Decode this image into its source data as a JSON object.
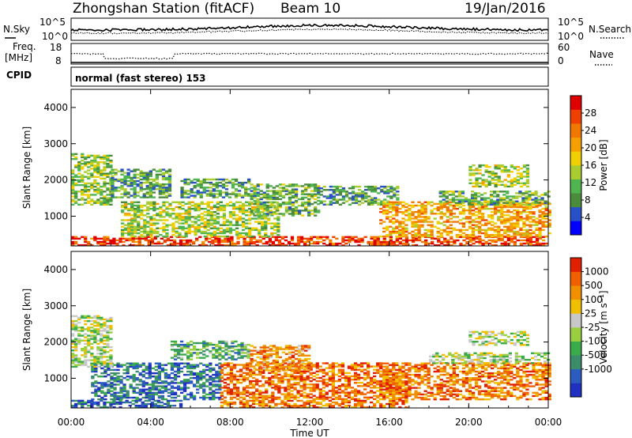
{
  "header": {
    "station": "Zhongshan Station (fitACF)",
    "beam": "Beam 10",
    "date": "19/Jan/2016"
  },
  "top_panels": {
    "nsky_label": "N.Sky",
    "nsearch_label": "N.Search",
    "nsky_ticks": [
      "10^5",
      "10^0"
    ],
    "nsearch_ticks": [
      "10^5",
      "10^0"
    ],
    "freq_label_line1": "Freq.",
    "freq_label_line2": "[MHz]",
    "freq_ticks": [
      "18",
      "8"
    ],
    "nave_label": "Nave",
    "nave_ticks": [
      "60",
      "0"
    ],
    "cpid_label": "CPID",
    "cpid_text": "normal (fast stereo) 153"
  },
  "chart_data": [
    {
      "type": "heatmap",
      "title": "",
      "xlabel": "Time UT",
      "ylabel": "Slant Range [km]",
      "xlim": [
        0,
        24
      ],
      "ylim": [
        180,
        4500
      ],
      "x_tick_labels": [
        "00:00",
        "04:00",
        "08:00",
        "12:00",
        "16:00",
        "20:00",
        "00:00"
      ],
      "y_ticks": [
        1000,
        2000,
        3000,
        4000
      ],
      "y_tick_labels": [
        "1000",
        "2000",
        "3000",
        "4000"
      ],
      "colorbar": {
        "label": "Power [dB]",
        "tick_labels": [
          "4",
          "8",
          "12",
          "16",
          "20",
          "24",
          "28"
        ],
        "ticks": [
          4,
          8,
          12,
          16,
          20,
          24,
          28
        ],
        "range": [
          0,
          32
        ],
        "colors": [
          "#0000ff",
          "#2850c8",
          "#4a8c3c",
          "#50b450",
          "#aacc30",
          "#f0d000",
          "#f5a000",
          "#f07800",
          "#f04000",
          "#e00000"
        ]
      },
      "regions": [
        {
          "t0": 0.0,
          "t1": 24.0,
          "r0": 180,
          "r1": 420,
          "level": 0.85
        },
        {
          "t0": 0.0,
          "t1": 2.0,
          "r0": 1300,
          "r1": 2700,
          "level": 0.4
        },
        {
          "t0": 2.0,
          "t1": 5.0,
          "r0": 1500,
          "r1": 2300,
          "level": 0.3
        },
        {
          "t0": 2.5,
          "t1": 10.5,
          "r0": 420,
          "r1": 1400,
          "level": 0.45
        },
        {
          "t0": 5.5,
          "t1": 9.0,
          "r0": 1500,
          "r1": 2000,
          "level": 0.3
        },
        {
          "t0": 9.0,
          "t1": 12.5,
          "r0": 1000,
          "r1": 1900,
          "level": 0.35
        },
        {
          "t0": 12.5,
          "t1": 16.5,
          "r0": 1300,
          "r1": 1800,
          "level": 0.3
        },
        {
          "t0": 15.5,
          "t1": 24.0,
          "r0": 420,
          "r1": 1400,
          "level": 0.65
        },
        {
          "t0": 18.5,
          "t1": 24.0,
          "r0": 1300,
          "r1": 1700,
          "level": 0.35
        },
        {
          "t0": 20.0,
          "t1": 23.0,
          "r0": 1800,
          "r1": 2400,
          "level": 0.45
        }
      ]
    },
    {
      "type": "heatmap",
      "title": "",
      "xlabel": "Time UT",
      "ylabel": "Slant Range [km]",
      "xlim": [
        0,
        24
      ],
      "ylim": [
        180,
        4500
      ],
      "x_tick_labels": [
        "00:00",
        "04:00",
        "08:00",
        "12:00",
        "16:00",
        "20:00",
        "00:00"
      ],
      "y_ticks": [
        1000,
        2000,
        3000,
        4000
      ],
      "y_tick_labels": [
        "1000",
        "2000",
        "3000",
        "4000"
      ],
      "colorbar": {
        "label": "Velocity [m s⁻¹]",
        "tick_labels": [
          "1000",
          "500",
          "100",
          "25",
          "-25",
          "-100",
          "-500",
          "-1000"
        ],
        "ticks": [
          1000,
          500,
          100,
          25,
          -25,
          -100,
          -500,
          -1000
        ],
        "colors": [
          "#2030c0",
          "#2c5cc0",
          "#3a8c6a",
          "#3aaa4a",
          "#9ad040",
          "#c8c8c8",
          "#f0c000",
          "#f09000",
          "#f06000",
          "#e02000"
        ]
      },
      "regions": [
        {
          "t0": 0.0,
          "t1": 5.5,
          "r0": 180,
          "r1": 400,
          "level": 0.15
        },
        {
          "t0": 1.0,
          "t1": 7.5,
          "r0": 400,
          "r1": 1400,
          "level": 0.2
        },
        {
          "t0": 0.0,
          "t1": 2.0,
          "r0": 1300,
          "r1": 2700,
          "level": 0.5
        },
        {
          "t0": 5.0,
          "t1": 9.0,
          "r0": 1500,
          "r1": 2000,
          "level": 0.35
        },
        {
          "t0": 7.5,
          "t1": 17.0,
          "r0": 180,
          "r1": 1400,
          "level": 0.82
        },
        {
          "t0": 9.0,
          "t1": 12.0,
          "r0": 1200,
          "r1": 1900,
          "level": 0.75
        },
        {
          "t0": 15.5,
          "t1": 24.0,
          "r0": 400,
          "r1": 1400,
          "level": 0.8
        },
        {
          "t0": 18.0,
          "t1": 24.0,
          "r0": 1400,
          "r1": 1700,
          "level": 0.5
        },
        {
          "t0": 20.0,
          "t1": 23.0,
          "r0": 1900,
          "r1": 2300,
          "level": 0.5
        }
      ]
    }
  ]
}
